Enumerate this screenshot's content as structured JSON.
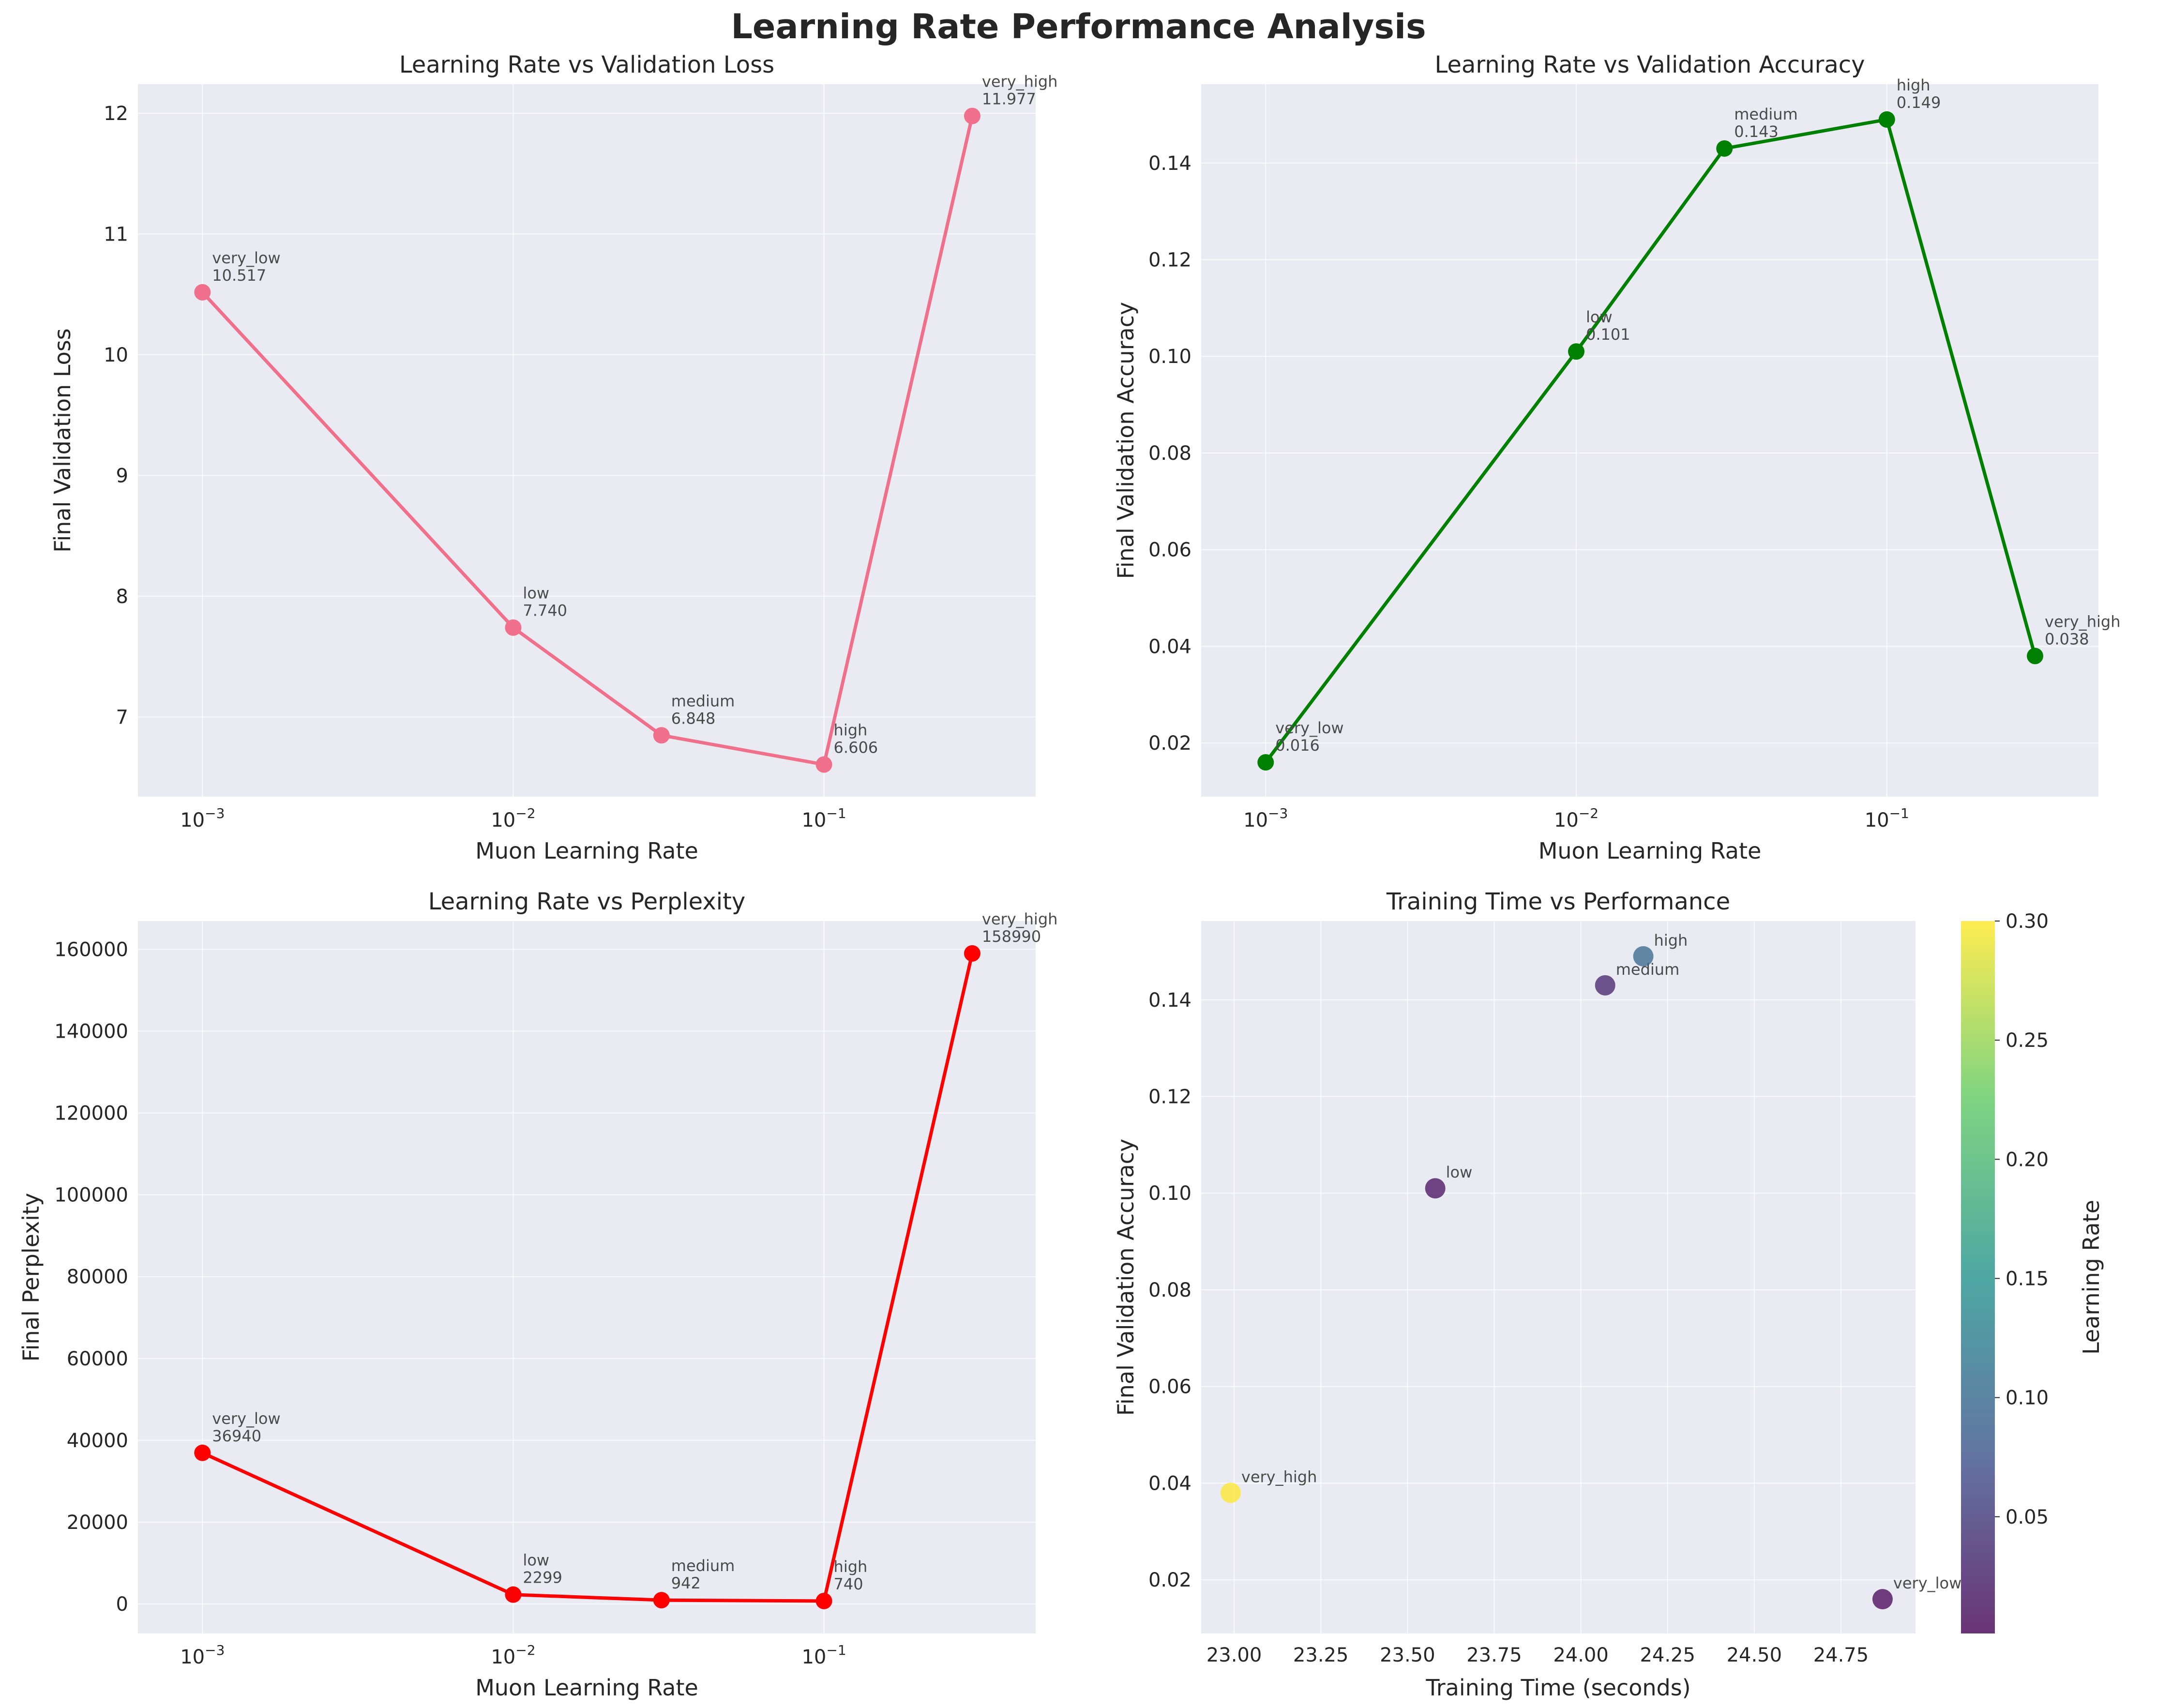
{
  "figure": {
    "title": "Learning Rate Performance Analysis"
  },
  "chart_data": [
    {
      "type": "line",
      "title": "Learning Rate vs Validation Loss",
      "xlabel": "Muon Learning Rate",
      "ylabel": "Final Validation Loss",
      "xscale": "log",
      "xlim": [
        0.00062,
        0.48
      ],
      "ylim": [
        6.34,
        12.24
      ],
      "xticks": [
        0.001,
        0.01,
        0.1
      ],
      "xtick_labels": [
        "10^-3",
        "10^-2",
        "10^-1"
      ],
      "yticks": [
        7,
        8,
        9,
        10,
        11,
        12
      ],
      "ytick_labels": [
        "7",
        "8",
        "9",
        "10",
        "11",
        "12"
      ],
      "grid": true,
      "color": "#f0708b",
      "series": [
        {
          "x": [
            0.001,
            0.01,
            0.03,
            0.1,
            0.3
          ],
          "y": [
            10.517,
            7.74,
            6.848,
            6.606,
            11.977
          ],
          "labels": [
            "very_low",
            "low",
            "medium",
            "high",
            "very_high"
          ],
          "value_labels": [
            "10.517",
            "7.740",
            "6.848",
            "6.606",
            "11.977"
          ]
        }
      ]
    },
    {
      "type": "line",
      "title": "Learning Rate vs Validation Accuracy",
      "xlabel": "Muon Learning Rate",
      "ylabel": "Final Validation Accuracy",
      "xscale": "log",
      "xlim": [
        0.00062,
        0.48
      ],
      "ylim": [
        0.0089,
        0.1563
      ],
      "xticks": [
        0.001,
        0.01,
        0.1
      ],
      "xtick_labels": [
        "10^-3",
        "10^-2",
        "10^-1"
      ],
      "yticks": [
        0.02,
        0.04,
        0.06,
        0.08,
        0.1,
        0.12,
        0.14
      ],
      "ytick_labels": [
        "0.02",
        "0.04",
        "0.06",
        "0.08",
        "0.10",
        "0.12",
        "0.14"
      ],
      "grid": true,
      "color": "#008000",
      "series": [
        {
          "x": [
            0.001,
            0.01,
            0.03,
            0.1,
            0.3
          ],
          "y": [
            0.016,
            0.101,
            0.143,
            0.149,
            0.038
          ],
          "labels": [
            "very_low",
            "low",
            "medium",
            "high",
            "very_high"
          ],
          "value_labels": [
            "0.016",
            "0.101",
            "0.143",
            "0.149",
            "0.038"
          ]
        }
      ]
    },
    {
      "type": "line",
      "title": "Learning Rate vs Perplexity",
      "xlabel": "Muon Learning Rate",
      "ylabel": "Final Perplexity",
      "xscale": "log",
      "xlim": [
        0.00062,
        0.48
      ],
      "ylim": [
        -7200,
        166900
      ],
      "xticks": [
        0.001,
        0.01,
        0.1
      ],
      "xtick_labels": [
        "10^-3",
        "10^-2",
        "10^-1"
      ],
      "yticks": [
        0,
        20000,
        40000,
        60000,
        80000,
        100000,
        120000,
        140000,
        160000
      ],
      "ytick_labels": [
        "0",
        "20000",
        "40000",
        "60000",
        "80000",
        "100000",
        "120000",
        "140000",
        "160000"
      ],
      "grid": true,
      "color": "#ff0000",
      "series": [
        {
          "x": [
            0.001,
            0.01,
            0.03,
            0.1,
            0.3
          ],
          "y": [
            36940,
            2299,
            942,
            740,
            158990
          ],
          "labels": [
            "very_low",
            "low",
            "medium",
            "high",
            "very_high"
          ],
          "value_labels": [
            "36940",
            "2299",
            "942",
            "740",
            "158990"
          ]
        }
      ]
    },
    {
      "type": "scatter",
      "title": "Training Time vs Performance",
      "xlabel": "Training Time (seconds)",
      "ylabel": "Final Validation Accuracy",
      "xlim": [
        22.905,
        24.965
      ],
      "ylim": [
        0.0089,
        0.1563
      ],
      "xticks": [
        23.0,
        23.25,
        23.5,
        23.75,
        24.0,
        24.25,
        24.5,
        24.75
      ],
      "xtick_labels": [
        "23.00",
        "23.25",
        "23.50",
        "23.75",
        "24.00",
        "24.25",
        "24.50",
        "24.75"
      ],
      "yticks": [
        0.02,
        0.04,
        0.06,
        0.08,
        0.1,
        0.12,
        0.14
      ],
      "ytick_labels": [
        "0.02",
        "0.04",
        "0.06",
        "0.08",
        "0.10",
        "0.12",
        "0.14"
      ],
      "grid": true,
      "colormap": "viridis",
      "series": [
        {
          "x": [
            24.87,
            23.58,
            24.07,
            24.18,
            22.99
          ],
          "y": [
            0.016,
            0.101,
            0.143,
            0.149,
            0.038
          ],
          "c": [
            0.001,
            0.01,
            0.03,
            0.1,
            0.3
          ],
          "labels": [
            "very_low",
            "low",
            "medium",
            "high",
            "very_high"
          ]
        }
      ],
      "colorbar": {
        "label": "Learning Rate",
        "range": [
          0.001,
          0.3
        ],
        "ticks": [
          0.05,
          0.1,
          0.15,
          0.2,
          0.25,
          0.3
        ],
        "tick_labels": [
          "0.05",
          "0.10",
          "0.15",
          "0.20",
          "0.25",
          "0.30"
        ]
      }
    }
  ]
}
